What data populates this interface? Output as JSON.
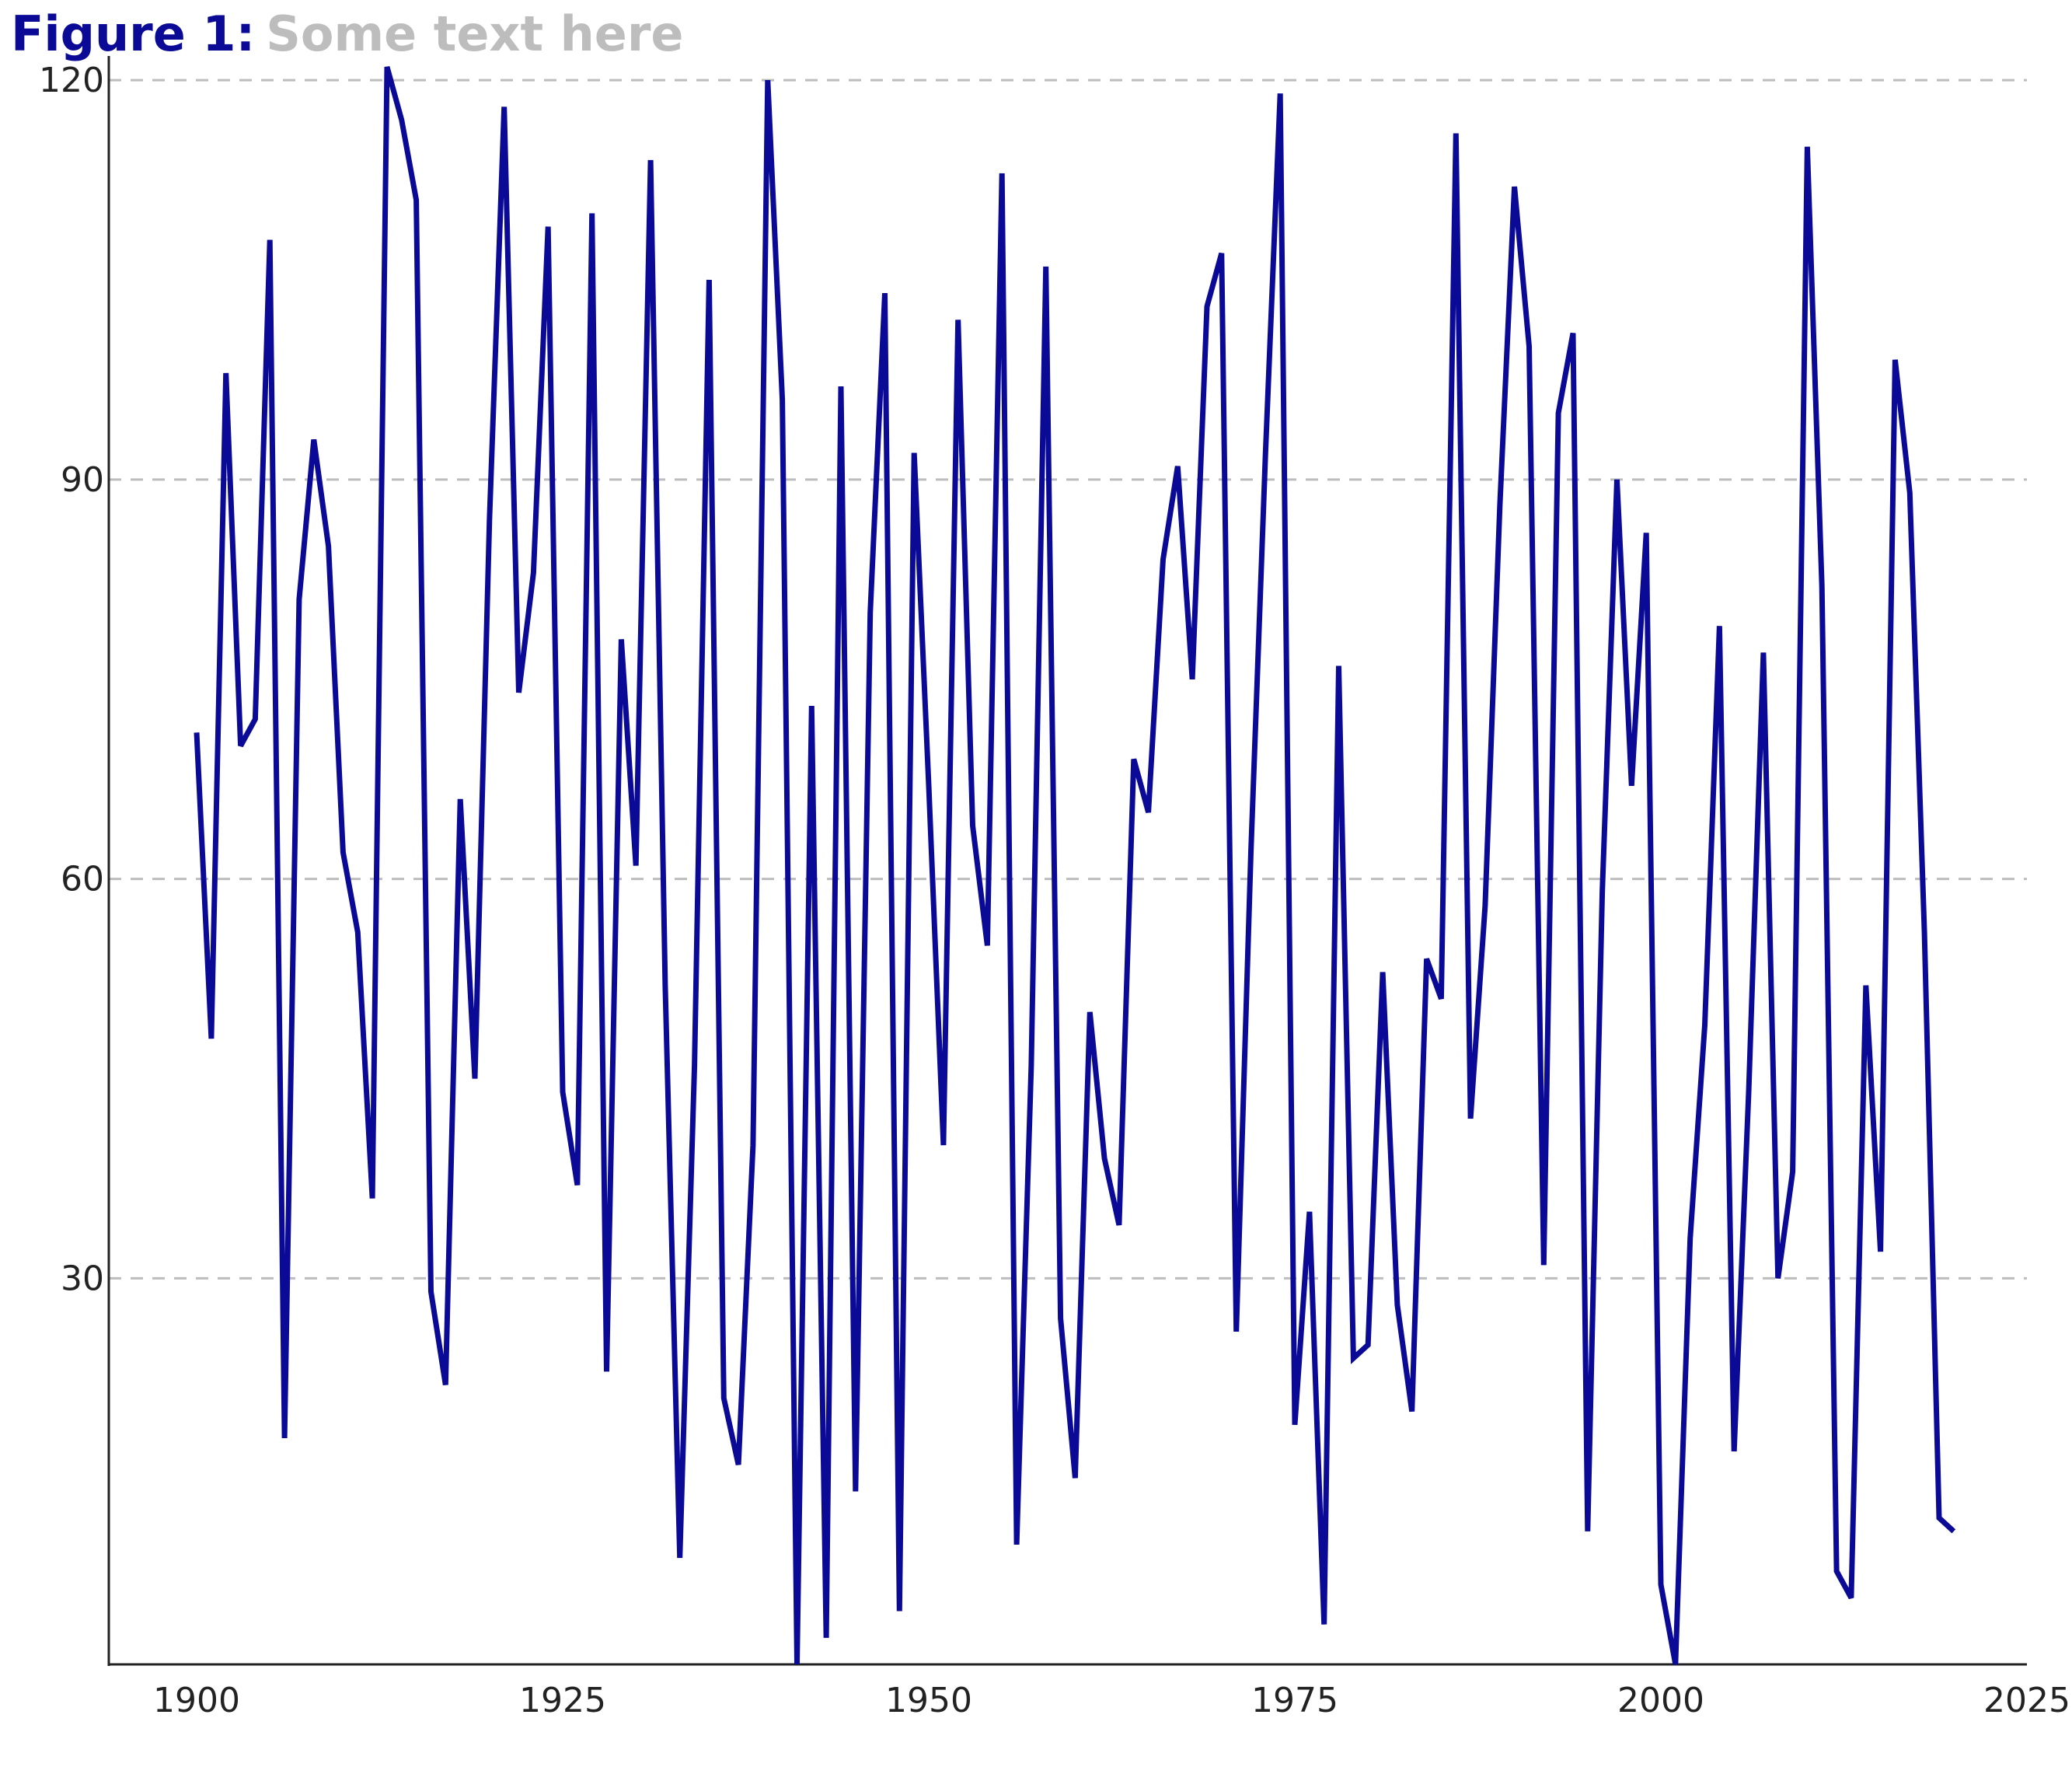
{
  "figure": {
    "label": "Figure 1:",
    "subtitle": "Some text here"
  },
  "colors": {
    "line": "#0a0a96",
    "grid": "#bdbdbd",
    "axis": "#222222",
    "title_label": "#0a0a96",
    "title_sub": "#bdbdbd"
  },
  "chart_data": {
    "type": "line",
    "title": "Some text here",
    "xlabel": "",
    "ylabel": "",
    "xlim": [
      1894,
      2025
    ],
    "ylim": [
      1,
      121
    ],
    "xticks": [
      1900,
      1925,
      1950,
      1975,
      2000,
      2025
    ],
    "yticks": [
      30,
      60,
      90,
      120
    ],
    "grid": "horizontal dashed",
    "legend": "none",
    "x": [
      1900,
      1901,
      1902,
      1903,
      1904,
      1905,
      1906,
      1907,
      1908,
      1909,
      1910,
      1911,
      1912,
      1913,
      1914,
      1915,
      1916,
      1917,
      1918,
      1919,
      1920,
      1921,
      1922,
      1923,
      1924,
      1925,
      1926,
      1927,
      1928,
      1929,
      1930,
      1931,
      1932,
      1933,
      1934,
      1935,
      1936,
      1937,
      1938,
      1939,
      1940,
      1941,
      1942,
      1943,
      1944,
      1945,
      1946,
      1947,
      1948,
      1949,
      1950,
      1951,
      1952,
      1953,
      1954,
      1955,
      1956,
      1957,
      1958,
      1959,
      1960,
      1961,
      1962,
      1963,
      1964,
      1965,
      1966,
      1967,
      1968,
      1969,
      1970,
      1971,
      1972,
      1973,
      1974,
      1975,
      1976,
      1977,
      1978,
      1979,
      1980,
      1981,
      1982,
      1983,
      1984,
      1985,
      1986,
      1987,
      1988,
      1989,
      1990,
      1991,
      1992,
      1993,
      1994,
      1995,
      1996,
      1997,
      1998,
      1999,
      2000,
      2001,
      2002,
      2003,
      2004,
      2005,
      2006,
      2007,
      2008,
      2009,
      2010,
      2011,
      2012,
      2013,
      2014,
      2015,
      2016,
      2017,
      2018,
      2019,
      2020
    ],
    "series": [
      {
        "values": [
          71,
          48,
          98,
          70,
          72,
          108,
          18,
          81,
          93,
          85,
          62,
          56,
          36,
          121,
          117,
          111,
          29,
          22,
          66,
          45,
          87,
          118,
          74,
          83,
          109,
          44,
          37,
          110,
          23,
          78,
          61,
          114,
          52,
          9,
          46,
          105,
          21,
          16,
          40,
          120,
          96,
          1,
          73,
          3,
          97,
          14,
          80,
          104,
          5,
          92,
          67,
          40,
          102,
          64,
          55,
          113,
          10,
          46,
          106,
          27,
          15,
          50,
          39,
          34,
          69,
          65,
          84,
          91,
          75,
          103,
          107,
          26,
          62,
          92,
          119,
          19,
          35,
          4,
          76,
          24,
          25,
          53,
          28,
          20,
          54,
          51,
          116,
          42,
          58,
          88,
          112,
          100,
          31,
          95,
          101,
          11,
          59,
          90,
          67,
          86,
          7,
          1,
          33,
          49,
          79,
          17,
          44,
          77,
          30,
          38,
          115,
          82,
          8,
          6,
          52,
          32,
          99,
          89,
          56,
          12,
          11
        ]
      }
    ]
  }
}
